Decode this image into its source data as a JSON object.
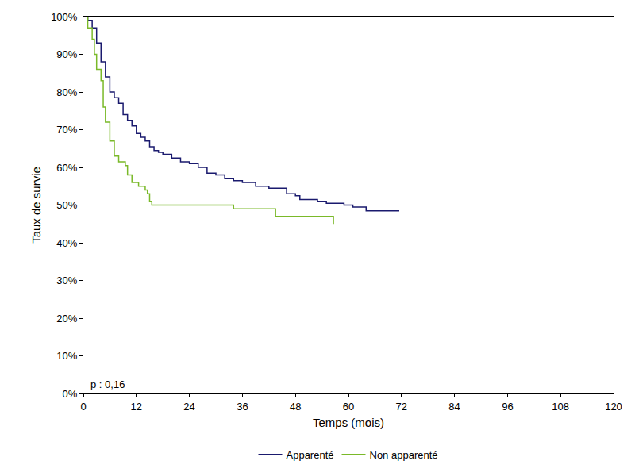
{
  "chart_data": {
    "type": "line",
    "line_style": "step",
    "x_label": "Temps (mois)",
    "y_label": "Taux de survie",
    "annotation": "p : 0,16",
    "legend": "bottom",
    "grid": false,
    "xlim": [
      0,
      120
    ],
    "xticks": [
      0,
      12,
      24,
      36,
      48,
      60,
      72,
      84,
      96,
      108,
      120
    ],
    "ylim": [
      0,
      100
    ],
    "yticks": [
      {
        "value": 0,
        "label": "0%"
      },
      {
        "value": 10,
        "label": "10%"
      },
      {
        "value": 20,
        "label": "20%"
      },
      {
        "value": 30,
        "label": "30%"
      },
      {
        "value": 40,
        "label": "40%"
      },
      {
        "value": 50,
        "label": "50%"
      },
      {
        "value": 60,
        "label": "60%"
      },
      {
        "value": 70,
        "label": "70%"
      },
      {
        "value": 80,
        "label": "80%"
      },
      {
        "value": 90,
        "label": "90%"
      },
      {
        "value": 100,
        "label": "100%"
      }
    ],
    "series": [
      {
        "name": "Apparenté",
        "color": "#1a1a6e",
        "x": [
          0,
          1,
          2,
          3,
          4,
          5,
          6,
          7,
          8,
          9,
          10,
          11,
          12,
          13,
          14,
          15,
          16,
          17,
          18,
          20,
          22,
          24,
          26,
          28,
          30,
          32,
          34,
          36,
          39,
          42,
          46,
          48,
          49,
          53,
          55,
          59,
          61,
          64,
          71.5
        ],
        "values": [
          100,
          99,
          97,
          93,
          88,
          84,
          80,
          78.5,
          77,
          74,
          72.5,
          71,
          69,
          68,
          67,
          65.5,
          64.5,
          64,
          63.5,
          62.5,
          61.5,
          61,
          60,
          58.5,
          58,
          57,
          56.5,
          56,
          55,
          54.5,
          53,
          52.5,
          51.5,
          51,
          50.5,
          50,
          49.5,
          48.5,
          48.5
        ]
      },
      {
        "name": "Non apparenté",
        "color": "#7ab929",
        "x": [
          0,
          1,
          2,
          2.5,
          3,
          4,
          4.5,
          5,
          6,
          7,
          8,
          9.5,
          10,
          11,
          12.5,
          14,
          14.5,
          15,
          15.5,
          32,
          34,
          43,
          43.5,
          56.5,
          56.6
        ],
        "values": [
          100,
          97,
          94,
          90,
          86,
          83,
          76,
          72,
          67,
          63,
          61.5,
          60.5,
          58,
          56,
          55,
          54,
          53,
          51,
          50,
          50,
          49,
          49,
          47,
          47,
          45
        ]
      }
    ]
  }
}
